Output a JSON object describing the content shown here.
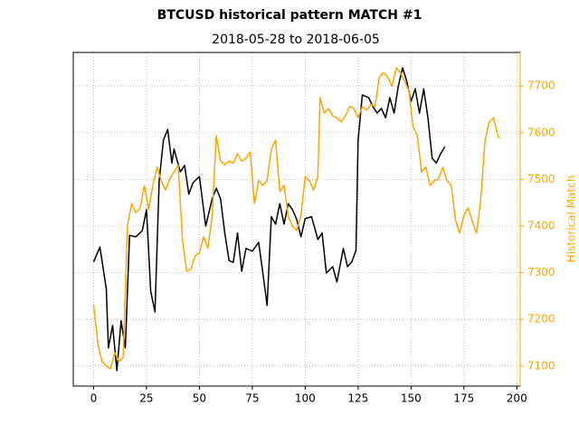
{
  "chart_data": {
    "type": "line",
    "title": "BTCUSD historical pattern MATCH #1",
    "subtitle": "2018-05-28 to 2018-06-05",
    "y2label": "Historical Match",
    "xlim": [
      -9.6,
      201.6
    ],
    "xticks": [
      0,
      25,
      50,
      75,
      100,
      125,
      150,
      175,
      200
    ],
    "ylim": [
      7057,
      7772
    ],
    "y2lim": [
      7057,
      7772
    ],
    "y2ticks": [
      7100,
      7200,
      7300,
      7400,
      7500,
      7600,
      7700
    ],
    "grid": true,
    "series": [
      {
        "color": "#000000",
        "axis": "y",
        "x": [
          0,
          3,
          6,
          7,
          9,
          11,
          13,
          15,
          17,
          20,
          23,
          25,
          27,
          29,
          31,
          33,
          35,
          37,
          38,
          41,
          43,
          45,
          47,
          50,
          53,
          56,
          58,
          60,
          62,
          64,
          66,
          68,
          70,
          72,
          75,
          78,
          80,
          82,
          84,
          86,
          88,
          90,
          92,
          94,
          96,
          98,
          100,
          103,
          106,
          108,
          110,
          113,
          115,
          118,
          120,
          122,
          124,
          125,
          127,
          130,
          132,
          134,
          136,
          138,
          140,
          142,
          144,
          146,
          148,
          150,
          152,
          154,
          156,
          158,
          160,
          162,
          164,
          166
        ],
        "values": [
          7323,
          7355,
          7265,
          7139,
          7187,
          7090,
          7197,
          7139,
          7380,
          7377,
          7390,
          7435,
          7260,
          7216,
          7497,
          7584,
          7607,
          7535,
          7565,
          7516,
          7530,
          7468,
          7493,
          7506,
          7400,
          7458,
          7481,
          7458,
          7385,
          7326,
          7322,
          7385,
          7303,
          7352,
          7346,
          7365,
          7299,
          7230,
          7420,
          7404,
          7448,
          7404,
          7448,
          7435,
          7414,
          7377,
          7416,
          7420,
          7371,
          7385,
          7299,
          7313,
          7280,
          7352,
          7313,
          7323,
          7348,
          7584,
          7681,
          7675,
          7656,
          7642,
          7652,
          7632,
          7675,
          7642,
          7700,
          7739,
          7710,
          7667,
          7694,
          7642,
          7694,
          7632,
          7545,
          7535,
          7555,
          7570
        ]
      },
      {
        "color": "#ffa500",
        "axis": "y2",
        "x": [
          0,
          2,
          4,
          6,
          8,
          10,
          12,
          14,
          16,
          18,
          20,
          22,
          24,
          26,
          28,
          30,
          32,
          34,
          36,
          38,
          40,
          42,
          44,
          46,
          48,
          50,
          52,
          54,
          56,
          58,
          60,
          62,
          64,
          66,
          68,
          70,
          72,
          74,
          76,
          78,
          80,
          82,
          84,
          86,
          88,
          90,
          92,
          94,
          96,
          98,
          100,
          102,
          104,
          106,
          107,
          109,
          111,
          113,
          115,
          117,
          119,
          121,
          123,
          125,
          127,
          129,
          131,
          133,
          135,
          137,
          139,
          141,
          143,
          145,
          147,
          149,
          151,
          153,
          155,
          157,
          159,
          161,
          163,
          165,
          167,
          169,
          171,
          173,
          175,
          177,
          179,
          181,
          183,
          185,
          187,
          189,
          191,
          192
        ],
        "values": [
          7232,
          7148,
          7110,
          7100,
          7094,
          7129,
          7110,
          7119,
          7400,
          7448,
          7429,
          7439,
          7487,
          7435,
          7487,
          7526,
          7497,
          7477,
          7501,
          7516,
          7530,
          7371,
          7303,
          7307,
          7336,
          7342,
          7377,
          7352,
          7420,
          7594,
          7539,
          7532,
          7539,
          7535,
          7555,
          7539,
          7545,
          7559,
          7448,
          7497,
          7487,
          7497,
          7565,
          7584,
          7474,
          7487,
          7420,
          7400,
          7390,
          7423,
          7506,
          7497,
          7477,
          7506,
          7675,
          7642,
          7652,
          7636,
          7632,
          7623,
          7636,
          7656,
          7652,
          7632,
          7656,
          7648,
          7661,
          7656,
          7719,
          7729,
          7719,
          7700,
          7739,
          7729,
          7710,
          7690,
          7613,
          7594,
          7516,
          7526,
          7487,
          7497,
          7501,
          7526,
          7497,
          7487,
          7414,
          7385,
          7423,
          7439,
          7410,
          7385,
          7458,
          7584,
          7623,
          7632,
          7594,
          7588
        ]
      }
    ]
  }
}
